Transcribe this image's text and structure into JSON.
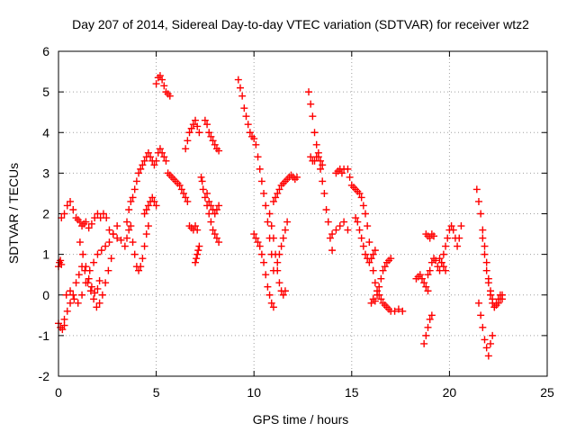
{
  "chart_data": {
    "type": "scatter",
    "title": "Day 207 of 2014, Sidereal Day-to-day VTEC variation (SDTVAR) for receiver wtz2",
    "xlabel": "GPS time / hours",
    "ylabel": "SDTVAR / TECUs",
    "xlim": [
      0,
      25
    ],
    "ylim": [
      -2,
      6
    ],
    "xticks": [
      0,
      5,
      10,
      15,
      20,
      25
    ],
    "yticks": [
      -2,
      -1,
      0,
      1,
      2,
      3,
      4,
      5,
      6
    ],
    "xtick_labels": [
      "0",
      "5",
      "10",
      "15",
      "20",
      "25"
    ],
    "ytick_labels": [
      "-2",
      "-1",
      "0",
      "1",
      "2",
      "3",
      "4",
      "5",
      "6"
    ],
    "grid": true,
    "marker": "+",
    "color": "#ff0000",
    "series": [
      {
        "name": "s1",
        "x": [
          0.0,
          0.05,
          0.1,
          0.15
        ],
        "y": [
          0.7,
          0.8,
          0.85,
          0.75
        ]
      },
      {
        "name": "s2",
        "x": [
          0.0,
          0.1,
          0.2,
          0.3
        ],
        "y": [
          -0.7,
          -0.8,
          -0.85,
          -0.75
        ]
      },
      {
        "name": "s3",
        "x": [
          0.15,
          0.3,
          0.45,
          0.6,
          0.75,
          0.9,
          1.0,
          1.1,
          1.2,
          1.3,
          1.4,
          1.55,
          1.7,
          1.85,
          2.0,
          2.15,
          2.3,
          2.45,
          2.6,
          2.8,
          3.0,
          3.2
        ],
        "y": [
          1.9,
          2.0,
          2.2,
          2.3,
          2.1,
          1.9,
          1.85,
          1.8,
          1.7,
          1.75,
          1.8,
          1.65,
          1.75,
          1.9,
          2.0,
          1.9,
          2.0,
          1.9,
          1.6,
          1.5,
          1.4,
          1.35
        ]
      },
      {
        "name": "s4",
        "x": [
          0.3,
          0.45,
          0.6,
          0.75,
          0.9,
          1.05,
          1.2,
          1.35,
          1.5,
          1.65,
          1.8,
          1.95,
          2.1,
          2.25,
          2.4,
          2.55,
          2.7
        ],
        "y": [
          -0.6,
          -0.4,
          -0.2,
          0.0,
          0.3,
          0.5,
          0.7,
          0.6,
          0.3,
          0.1,
          -0.1,
          -0.3,
          -0.2,
          0.0,
          0.3,
          0.6,
          0.9
        ]
      },
      {
        "name": "s5",
        "x": [
          0.4,
          0.6,
          0.8,
          1.0,
          1.2,
          1.4,
          1.6,
          1.8,
          2.0,
          2.2,
          2.4,
          2.6,
          2.8,
          3.0
        ],
        "y": [
          0.0,
          0.1,
          -0.1,
          -0.2,
          0.0,
          0.3,
          0.6,
          0.8,
          1.0,
          1.1,
          1.2,
          1.3,
          1.5,
          1.7
        ]
      },
      {
        "name": "s6",
        "x": [
          1.1,
          1.25,
          1.4,
          1.55,
          1.7,
          1.85,
          2.0,
          2.1
        ],
        "y": [
          1.3,
          1.0,
          0.7,
          0.4,
          0.2,
          0.05,
          0.15,
          0.35
        ]
      },
      {
        "name": "s7",
        "x": [
          3.4,
          3.5,
          3.6,
          3.7,
          3.8,
          3.9,
          4.0,
          4.1,
          4.2,
          4.3,
          4.4,
          4.5,
          4.6
        ],
        "y": [
          1.2,
          1.4,
          1.6,
          1.7,
          1.3,
          1.0,
          0.7,
          0.6,
          0.7,
          0.9,
          1.2,
          1.5,
          1.7
        ]
      },
      {
        "name": "s8",
        "x": [
          3.5,
          3.6,
          3.7,
          3.8,
          3.9,
          4.0,
          4.1,
          4.2,
          4.3,
          4.4,
          4.5,
          4.6,
          4.7,
          4.8,
          4.9,
          5.0,
          5.1,
          5.2,
          5.3,
          5.4,
          5.5
        ],
        "y": [
          1.8,
          2.1,
          2.3,
          2.4,
          2.6,
          2.8,
          3.0,
          3.1,
          3.2,
          3.3,
          3.4,
          3.5,
          3.4,
          3.3,
          3.2,
          3.3,
          3.5,
          3.6,
          3.5,
          3.4,
          3.3
        ]
      },
      {
        "name": "s9",
        "x": [
          4.4,
          4.5,
          4.6,
          4.7,
          4.8,
          4.9,
          5.0
        ],
        "y": [
          2.0,
          2.1,
          2.2,
          2.3,
          2.4,
          2.3,
          2.2
        ]
      },
      {
        "name": "s10",
        "x": [
          5.0,
          5.1,
          5.2,
          5.3,
          5.4,
          5.5,
          5.6,
          5.7
        ],
        "y": [
          5.2,
          5.35,
          5.4,
          5.3,
          5.15,
          5.0,
          4.95,
          4.9
        ]
      },
      {
        "name": "s11",
        "x": [
          5.6,
          5.7,
          5.8,
          5.9,
          6.0,
          6.1,
          6.2,
          6.3,
          6.4,
          6.5,
          6.6
        ],
        "y": [
          3.0,
          2.95,
          2.9,
          2.85,
          2.8,
          2.75,
          2.7,
          2.6,
          2.5,
          2.4,
          2.3
        ]
      },
      {
        "name": "s12",
        "x": [
          6.5,
          6.6,
          6.7,
          6.8,
          6.9,
          7.0,
          7.1,
          7.2
        ],
        "y": [
          3.6,
          3.8,
          4.0,
          4.1,
          4.2,
          4.3,
          4.15,
          4.0
        ]
      },
      {
        "name": "s13",
        "x": [
          6.7,
          6.8,
          6.9,
          7.0,
          7.1
        ],
        "y": [
          1.7,
          1.65,
          1.6,
          1.7,
          1.6
        ]
      },
      {
        "name": "s14",
        "x": [
          7.0,
          7.05,
          7.1,
          7.15,
          7.2
        ],
        "y": [
          0.8,
          0.9,
          1.0,
          1.1,
          1.2
        ]
      },
      {
        "name": "s15",
        "x": [
          7.3,
          7.35,
          7.4,
          7.5,
          7.6,
          7.7,
          7.8,
          7.9,
          8.0,
          8.1,
          8.2
        ],
        "y": [
          2.9,
          2.8,
          2.6,
          2.4,
          2.2,
          2.0,
          1.8,
          1.6,
          1.5,
          1.4,
          1.3
        ]
      },
      {
        "name": "s16",
        "x": [
          7.5,
          7.6,
          7.7,
          7.8,
          7.9,
          8.0,
          8.1,
          8.2
        ],
        "y": [
          4.3,
          4.2,
          4.0,
          3.9,
          3.8,
          3.7,
          3.6,
          3.55
        ]
      },
      {
        "name": "s17",
        "x": [
          7.6,
          7.7,
          7.8,
          7.9,
          8.0,
          8.1,
          8.2
        ],
        "y": [
          2.5,
          2.3,
          2.2,
          2.1,
          2.0,
          2.1,
          2.2
        ]
      },
      {
        "name": "s18",
        "x": [
          9.2,
          9.3,
          9.4,
          9.5,
          9.6,
          9.7,
          9.8,
          9.9,
          10.0,
          10.1,
          10.2,
          10.3,
          10.4,
          10.5,
          10.6,
          10.7,
          10.8,
          10.9,
          11.0
        ],
        "y": [
          5.3,
          5.1,
          4.9,
          4.6,
          4.4,
          4.2,
          4.0,
          3.9,
          3.85,
          3.7,
          3.4,
          3.1,
          2.8,
          2.5,
          2.2,
          1.8,
          1.4,
          1.0,
          0.6
        ]
      },
      {
        "name": "s19",
        "x": [
          10.0,
          10.1,
          10.2,
          10.3,
          10.4,
          10.5,
          10.6,
          10.7,
          10.8,
          10.9,
          11.0
        ],
        "y": [
          1.5,
          1.4,
          1.3,
          1.2,
          1.0,
          0.8,
          0.5,
          0.2,
          0.0,
          -0.2,
          -0.3
        ]
      },
      {
        "name": "s20",
        "x": [
          10.8,
          10.9,
          11.0,
          11.1,
          11.2,
          11.3,
          11.4,
          11.5,
          11.6
        ],
        "y": [
          2.0,
          1.7,
          1.4,
          1.0,
          0.6,
          0.3,
          0.1,
          0.0,
          0.1
        ]
      },
      {
        "name": "s21",
        "x": [
          11.0,
          11.1,
          11.2,
          11.3,
          11.4,
          11.5,
          11.6,
          11.7,
          11.8,
          11.9,
          12.0,
          12.1,
          12.2
        ],
        "y": [
          2.3,
          2.4,
          2.5,
          2.6,
          2.7,
          2.75,
          2.8,
          2.85,
          2.9,
          2.95,
          2.9,
          2.85,
          2.9
        ]
      },
      {
        "name": "s22",
        "x": [
          11.2,
          11.3,
          11.4,
          11.5,
          11.6,
          11.7
        ],
        "y": [
          0.8,
          1.0,
          1.2,
          1.4,
          1.6,
          1.8
        ]
      },
      {
        "name": "s23",
        "x": [
          12.8,
          12.9,
          13.0,
          13.1,
          13.2,
          13.3,
          13.4,
          13.5,
          13.6,
          13.7,
          13.8,
          13.9,
          14.0
        ],
        "y": [
          5.0,
          4.7,
          4.4,
          4.0,
          3.7,
          3.4,
          3.1,
          2.8,
          2.5,
          2.1,
          1.8,
          1.4,
          1.1
        ]
      },
      {
        "name": "s24",
        "x": [
          12.9,
          13.0,
          13.1,
          13.2,
          13.3,
          13.4,
          13.5
        ],
        "y": [
          3.4,
          3.3,
          3.3,
          3.4,
          3.5,
          3.3,
          3.2
        ]
      },
      {
        "name": "s25",
        "x": [
          14.0,
          14.2,
          14.4,
          14.6,
          14.8
        ],
        "y": [
          1.5,
          1.6,
          1.7,
          1.8,
          1.6
        ]
      },
      {
        "name": "s26",
        "x": [
          14.2,
          14.3,
          14.4,
          14.5,
          14.6
        ],
        "y": [
          3.0,
          3.05,
          3.1,
          3.0,
          3.1
        ]
      },
      {
        "name": "s27",
        "x": [
          14.8,
          14.9,
          15.0,
          15.1,
          15.2,
          15.3,
          15.4,
          15.5,
          15.6,
          15.7,
          15.8,
          15.9,
          16.0,
          16.1,
          16.2,
          16.3,
          16.4,
          16.5,
          16.6,
          16.7,
          16.8,
          16.9,
          17.0,
          17.2,
          17.4,
          17.6
        ],
        "y": [
          3.1,
          2.9,
          2.7,
          2.65,
          2.6,
          2.55,
          2.5,
          2.4,
          2.2,
          2.0,
          1.7,
          1.3,
          0.9,
          0.6,
          0.3,
          0.1,
          0.0,
          -0.1,
          -0.2,
          -0.25,
          -0.3,
          -0.35,
          -0.4,
          -0.4,
          -0.35,
          -0.4
        ]
      },
      {
        "name": "s28",
        "x": [
          15.2,
          15.3,
          15.4,
          15.5,
          15.6,
          15.7,
          15.8,
          15.9,
          16.0,
          16.1,
          16.2
        ],
        "y": [
          1.9,
          1.8,
          1.6,
          1.4,
          1.2,
          1.0,
          0.9,
          0.8,
          0.9,
          1.0,
          1.1
        ]
      },
      {
        "name": "s29",
        "x": [
          16.0,
          16.1,
          16.2,
          16.3,
          16.4,
          16.5,
          16.6,
          16.7,
          16.8,
          16.9,
          17.0
        ],
        "y": [
          -0.2,
          -0.1,
          -0.15,
          0.0,
          0.2,
          0.4,
          0.6,
          0.7,
          0.8,
          0.85,
          0.9
        ]
      },
      {
        "name": "s30",
        "x": [
          18.3,
          18.4,
          18.5,
          18.6,
          18.7,
          18.8,
          18.9
        ],
        "y": [
          0.4,
          0.45,
          0.5,
          0.4,
          0.3,
          0.2,
          0.1
        ]
      },
      {
        "name": "s31",
        "x": [
          18.7,
          18.8,
          18.9,
          19.0,
          19.1
        ],
        "y": [
          -1.2,
          -1.0,
          -0.8,
          -0.6,
          -0.5
        ]
      },
      {
        "name": "s32",
        "x": [
          18.8,
          18.9,
          19.0,
          19.1,
          19.2
        ],
        "y": [
          1.5,
          1.45,
          1.4,
          1.5,
          1.45
        ]
      },
      {
        "name": "s33",
        "x": [
          18.9,
          19.0,
          19.1,
          19.2,
          19.3,
          19.4,
          19.5,
          19.6,
          19.7,
          19.8,
          19.9,
          20.0,
          20.1,
          20.2,
          20.3,
          20.4,
          20.5,
          20.6
        ],
        "y": [
          0.5,
          0.6,
          0.8,
          0.9,
          0.85,
          0.7,
          0.6,
          0.8,
          1.0,
          1.2,
          1.4,
          1.6,
          1.7,
          1.6,
          1.4,
          1.2,
          1.4,
          1.7
        ]
      },
      {
        "name": "s34",
        "x": [
          19.5,
          19.6,
          19.7,
          19.8
        ],
        "y": [
          0.9,
          0.8,
          0.7,
          0.6
        ]
      },
      {
        "name": "s35",
        "x": [
          21.4,
          21.5,
          21.6,
          21.7,
          21.8,
          21.9,
          22.0,
          22.1,
          22.2,
          22.3,
          22.4,
          22.5,
          22.6,
          22.7
        ],
        "y": [
          2.6,
          2.3,
          2.0,
          1.6,
          1.2,
          0.8,
          0.4,
          0.1,
          -0.1,
          -0.3,
          -0.25,
          -0.2,
          -0.1,
          0.0
        ]
      },
      {
        "name": "s36",
        "x": [
          21.5,
          21.6,
          21.7,
          21.8,
          21.9,
          22.0,
          22.1,
          22.2
        ],
        "y": [
          -0.2,
          -0.5,
          -0.8,
          -1.1,
          -1.3,
          -1.5,
          -1.2,
          -1.0
        ]
      },
      {
        "name": "s37",
        "x": [
          21.7,
          21.8,
          21.9,
          22.0,
          22.1,
          22.2,
          22.3,
          22.4,
          22.5,
          22.6,
          22.7
        ],
        "y": [
          1.4,
          1.0,
          0.6,
          0.3,
          0.0,
          -0.2,
          -0.3,
          -0.2,
          -0.1,
          0.0,
          -0.1
        ]
      }
    ]
  }
}
